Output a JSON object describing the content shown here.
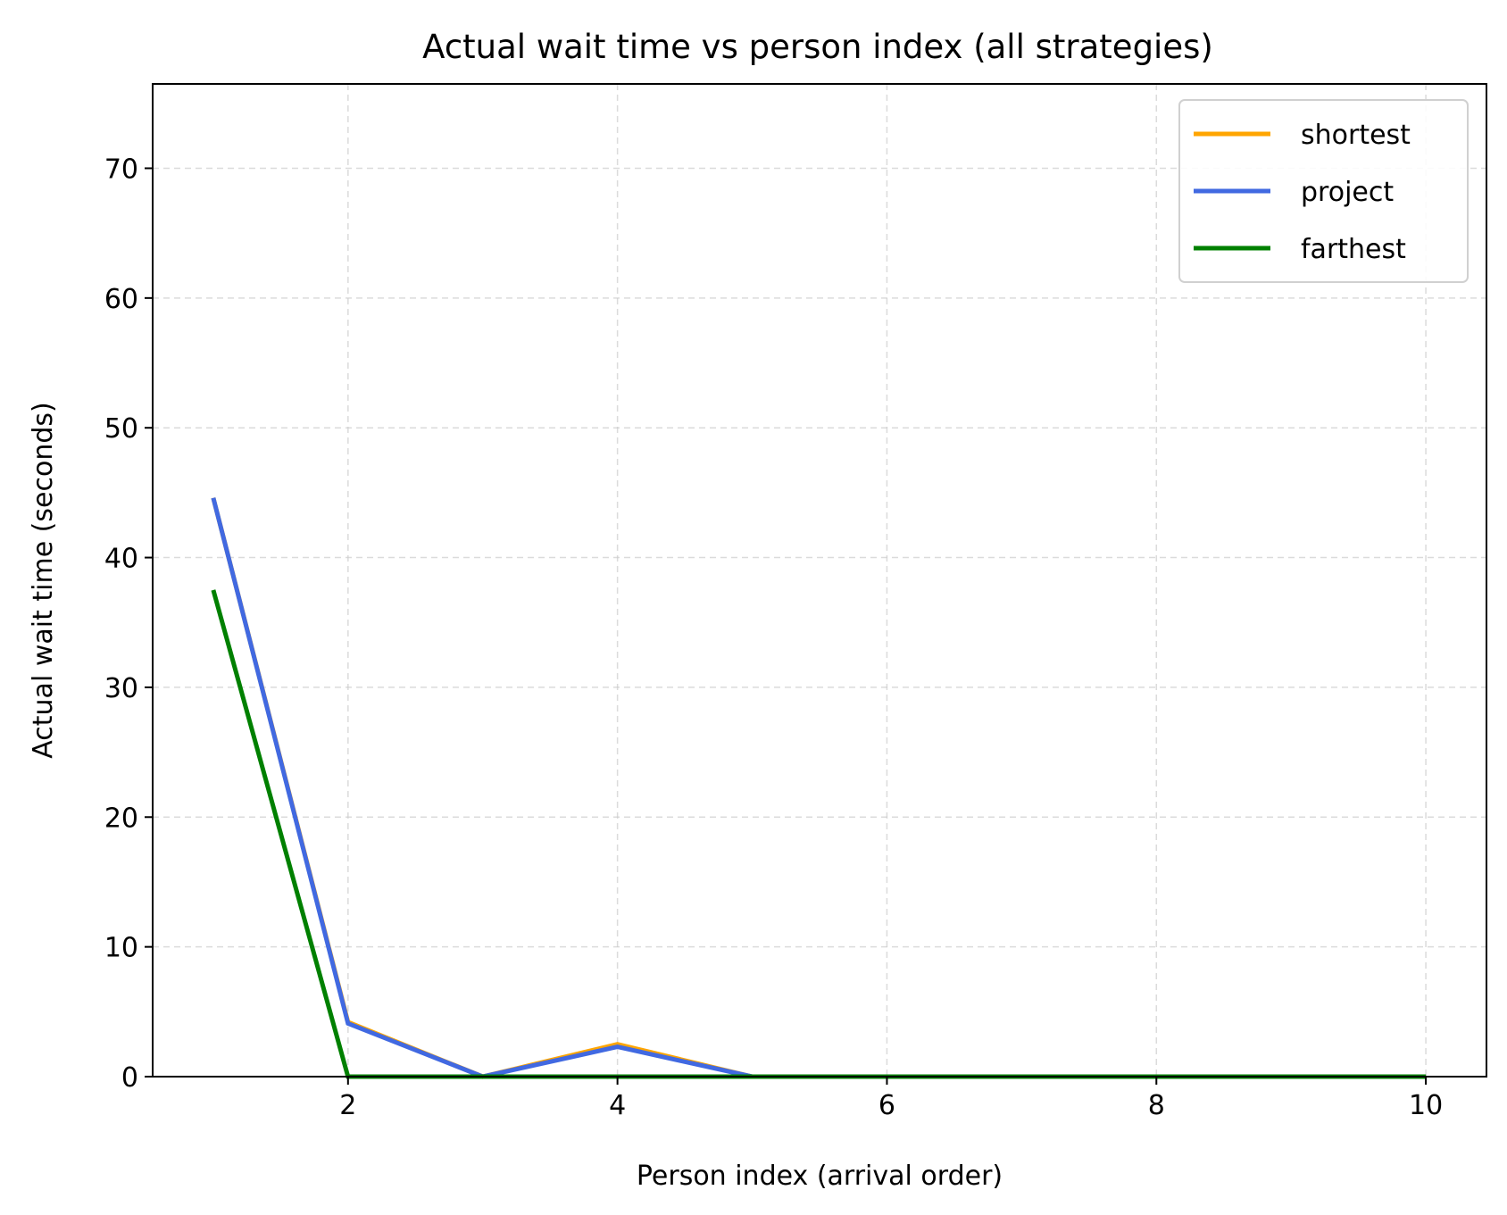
{
  "chart_data": {
    "type": "line",
    "title": "Actual wait time vs person index (all strategies)",
    "xlabel": "Person index (arrival order)",
    "ylabel": "Actual wait time (seconds)",
    "xlim": [
      0.55,
      10.45
    ],
    "ylim": [
      0,
      76.5
    ],
    "xticks": [
      2,
      4,
      6,
      8,
      10
    ],
    "yticks": [
      0,
      10,
      20,
      30,
      40,
      50,
      60,
      70
    ],
    "grid": true,
    "legend_position": "top-right",
    "x": [
      1,
      2,
      3,
      4,
      5,
      6,
      7,
      8,
      9,
      10
    ],
    "series": [
      {
        "name": "shortest",
        "color": "#FFA500",
        "values": [
          44.6,
          4.2,
          0,
          2.5,
          0,
          0,
          0,
          0,
          0,
          0
        ]
      },
      {
        "name": "project",
        "color": "#4169E1",
        "values": [
          44.6,
          4.1,
          0,
          2.3,
          0,
          0,
          0,
          0,
          0,
          0
        ]
      },
      {
        "name": "farthest",
        "color": "#008000",
        "values": [
          37.5,
          0,
          0,
          0,
          0,
          0,
          0,
          0,
          0,
          0
        ]
      }
    ]
  }
}
